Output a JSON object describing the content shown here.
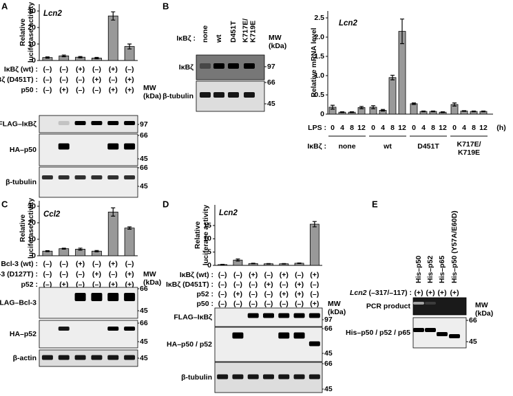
{
  "panel_labels": [
    "A",
    "B",
    "C",
    "D",
    "E"
  ],
  "chart_data": [
    {
      "type": "bar",
      "title": "Lcn2",
      "y_label": [
        "Relative",
        "luciferase activity"
      ],
      "values": [
        1.8,
        2.8,
        2.0,
        1.5,
        27,
        8.5
      ],
      "errors": [
        0.4,
        0.5,
        0.4,
        0.4,
        2.5,
        1.5
      ],
      "color": "#999999",
      "ylim": [
        0,
        30
      ],
      "yticks": [
        0,
        10,
        20,
        30
      ]
    },
    {
      "type": "bar",
      "title": "Lcn2",
      "y_label": [
        "Relative mRNA level"
      ],
      "x_label": "LPS :",
      "x_unit": "(h)",
      "categories": [
        "0",
        "4",
        "8",
        "12",
        "0",
        "4",
        "8",
        "12",
        "0",
        "4",
        "8",
        "12",
        "0",
        "4",
        "8",
        "12"
      ],
      "group_label": "IκBζ :",
      "groups": [
        [
          "none"
        ],
        [
          "wt"
        ],
        [
          "D451T"
        ],
        [
          "K717E/",
          "K719E"
        ]
      ],
      "values": [
        0.18,
        0.05,
        0.05,
        0.17,
        0.18,
        0.1,
        0.95,
        2.15,
        0.27,
        0.07,
        0.07,
        0.05,
        0.25,
        0.08,
        0.07,
        0.07
      ],
      "errors": [
        0.05,
        0.01,
        0.01,
        0.03,
        0.04,
        0.02,
        0.06,
        0.32,
        0.02,
        0.01,
        0.01,
        0.01,
        0.04,
        0.01,
        0.01,
        0.01
      ],
      "color": "#999999",
      "ylim": [
        0,
        2.5
      ],
      "yticks": [
        0,
        0.5,
        {
          "value": 1,
          "label": "1.0"
        },
        1.5,
        {
          "value": 2,
          "label": "2.0"
        },
        2.5
      ]
    },
    {
      "type": "bar",
      "title": "Ccl2",
      "y_label": [
        "Relative",
        "luciferase activity"
      ],
      "values": [
        2.8,
        4.3,
        4.0,
        2.8,
        26.5,
        16.8
      ],
      "errors": [
        0.3,
        0.3,
        0.6,
        0.4,
        2.5,
        0.7
      ],
      "color": "#999999",
      "ylim": [
        0,
        30
      ],
      "yticks": [
        0,
        10,
        20,
        30
      ]
    },
    {
      "type": "bar",
      "title": "Lcn2",
      "y_label": [
        "Relative",
        "luciferase activity"
      ],
      "values": [
        0.3,
        2.0,
        0.7,
        0.6,
        0.6,
        0.8,
        15.5
      ],
      "errors": [
        0.1,
        0.4,
        0.1,
        0.1,
        0.1,
        0.1,
        1.0
      ],
      "color": "#999999",
      "ylim": [
        0,
        15
      ],
      "yticks": [
        0,
        5,
        10,
        15
      ]
    }
  ],
  "panel_a": {
    "conditions": [
      {
        "name": "IκBζ (wt) :",
        "marks": [
          "(–)",
          "(–)",
          "(+)",
          "(–)",
          "(+)",
          "(–)"
        ]
      },
      {
        "name": "IκBζ (D451T) :",
        "marks": [
          "(–)",
          "(–)",
          "(–)",
          "(+)",
          "(–)",
          "(+)"
        ]
      },
      {
        "name": "p50 :",
        "marks": [
          "(–)",
          "(+)",
          "(–)",
          "(–)",
          "(+)",
          "(+)"
        ]
      }
    ],
    "mw_label": [
      "MW",
      "(kDa)"
    ],
    "blots": [
      {
        "name": "FLAG–IκBζ",
        "mw": [
          97
        ]
      },
      {
        "name": "HA–p50",
        "mw": [
          66,
          45
        ]
      },
      {
        "name": "β-tubulin",
        "mw": [
          66,
          45
        ]
      }
    ]
  },
  "panel_b": {
    "lane_label": "IκBζ :",
    "lanes": [
      [
        "none"
      ],
      [
        "wt"
      ],
      [
        "D451T"
      ],
      [
        "K717E/",
        "K719E"
      ]
    ],
    "mw_label": [
      "MW",
      "(kDa)"
    ],
    "blots": [
      {
        "name": "IκBζ",
        "mw": [
          97
        ]
      },
      {
        "name": "β-tubulin",
        "mw": [
          66,
          45
        ]
      }
    ]
  },
  "panel_c": {
    "conditions": [
      {
        "name": "Bcl-3 (wt) :",
        "marks": [
          "(–)",
          "(–)",
          "(+)",
          "(–)",
          "(+)",
          "(–)"
        ]
      },
      {
        "name": "Bcl-3 (D127T) :",
        "marks": [
          "(–)",
          "(–)",
          "(–)",
          "(+)",
          "(–)",
          "(+)"
        ]
      },
      {
        "name": "p52 :",
        "marks": [
          "(–)",
          "(+)",
          "(–)",
          "(–)",
          "(+)",
          "(+)"
        ]
      }
    ],
    "mw_label": [
      "MW",
      "(kDa)"
    ],
    "blots": [
      {
        "name": "FLAG–Bcl-3",
        "mw": [
          66,
          45
        ]
      },
      {
        "name": "HA–p52",
        "mw": [
          66,
          45
        ]
      },
      {
        "name": "β-actin",
        "mw": [
          45
        ]
      }
    ]
  },
  "panel_d": {
    "conditions": [
      {
        "name": "IκBζ (wt) :",
        "marks": [
          "(–)",
          "(–)",
          "(+)",
          "(–)",
          "(+)",
          "(–)",
          "(+)"
        ]
      },
      {
        "name": "IκBζ (D451T) :",
        "marks": [
          "(–)",
          "(–)",
          "(–)",
          "(+)",
          "(–)",
          "(+)",
          "(–)"
        ]
      },
      {
        "name": "p52 :",
        "marks": [
          "(–)",
          "(+)",
          "(–)",
          "(–)",
          "(+)",
          "(+)",
          "(–)"
        ]
      },
      {
        "name": "p50 :",
        "marks": [
          "(–)",
          "(–)",
          "(–)",
          "(–)",
          "(–)",
          "(–)",
          "(+)"
        ]
      }
    ],
    "mw_label": [
      "MW",
      "(kDa)"
    ],
    "blots": [
      {
        "name": "FLAG–IκBζ",
        "mw": [
          97
        ]
      },
      {
        "name": "HA–p50 / p52",
        "mw": [
          66,
          45
        ]
      },
      {
        "name": "β-tubulin",
        "mw": [
          66,
          45
        ]
      }
    ]
  },
  "panel_e": {
    "lanes": [
      [
        "His–p50"
      ],
      [
        "His–p52"
      ],
      [
        "His–p65"
      ],
      [
        "His–p50 (Y57A/E60D)"
      ]
    ],
    "template": {
      "gene": "Lcn2",
      "region": "(–317/–117) :",
      "marks": [
        "(+)",
        "(+)",
        "(+)",
        "(+)"
      ]
    },
    "mw_label": [
      "MW",
      "(kDa)"
    ],
    "blots": [
      {
        "name": "PCR product",
        "mw": []
      },
      {
        "name": "His–p50 / p52 / p65",
        "mw": [
          66,
          45
        ]
      }
    ]
  }
}
